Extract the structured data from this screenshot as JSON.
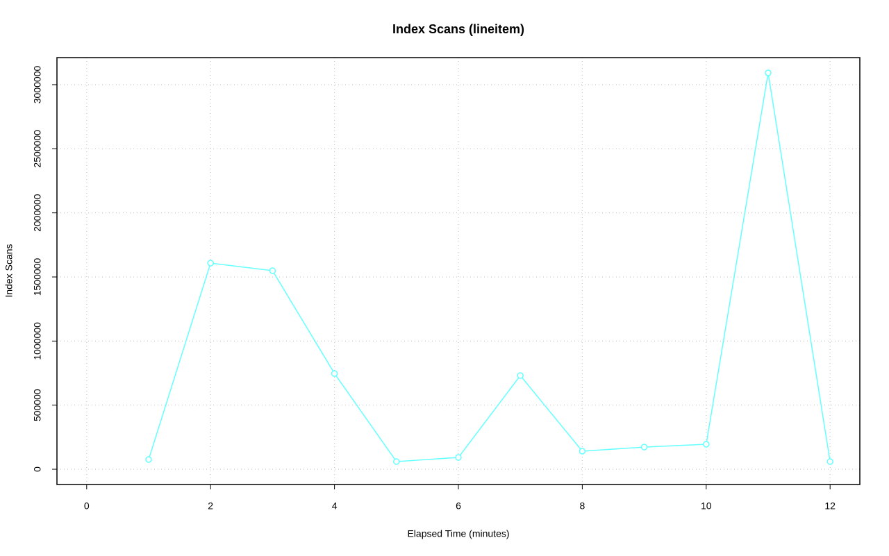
{
  "chart_data": {
    "type": "line",
    "title": "Index Scans (lineitem)",
    "x_label": "Elapsed Time (minutes)",
    "y_label": "Index Scans",
    "x": [
      1,
      2,
      3,
      4,
      5,
      6,
      7,
      8,
      9,
      10,
      11,
      12
    ],
    "values": [
      76000,
      1608000,
      1549000,
      747000,
      60000,
      92000,
      731000,
      141000,
      173000,
      195000,
      3092000,
      60000
    ],
    "color": "#66ffff",
    "xlim": [
      -0.48,
      12.48
    ],
    "xticks": [
      0,
      2,
      4,
      6,
      8,
      10,
      12
    ],
    "ylim": [
      -119000,
      3211000
    ],
    "yticks": [
      0,
      500000,
      1000000,
      1500000,
      2000000,
      2500000,
      3000000
    ],
    "grid": true
  }
}
